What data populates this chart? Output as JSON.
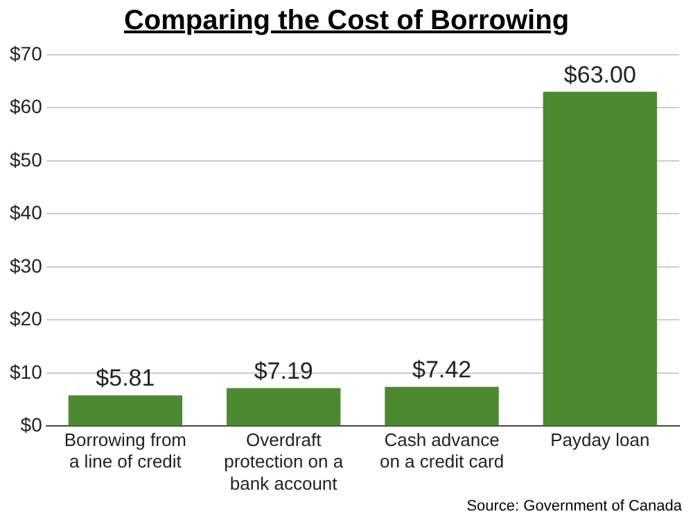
{
  "chart_data": {
    "type": "bar",
    "title": "Comparing the Cost of Borrowing",
    "categories": [
      "Borrowing from a line of credit",
      "Overdraft protection on a bank account",
      "Cash advance on a credit card",
      "Payday loan"
    ],
    "values": [
      5.81,
      7.19,
      7.42,
      63.0
    ],
    "value_labels": [
      "$5.81",
      "$7.19",
      "$7.42",
      "$63.00"
    ],
    "color": "#4b8a30",
    "ylim": [
      0,
      70
    ],
    "yticks": [
      {
        "value": 0,
        "label": "$0"
      },
      {
        "value": 10,
        "label": "$10"
      },
      {
        "value": 20,
        "label": "$20"
      },
      {
        "value": 30,
        "label": "$30"
      },
      {
        "value": 40,
        "label": "$40"
      },
      {
        "value": 50,
        "label": "$50"
      },
      {
        "value": 60,
        "label": "$60"
      },
      {
        "value": 70,
        "label": "$70"
      }
    ],
    "grid": "y",
    "legend": false,
    "annotations": [
      "Source: Government of Canada"
    ]
  }
}
